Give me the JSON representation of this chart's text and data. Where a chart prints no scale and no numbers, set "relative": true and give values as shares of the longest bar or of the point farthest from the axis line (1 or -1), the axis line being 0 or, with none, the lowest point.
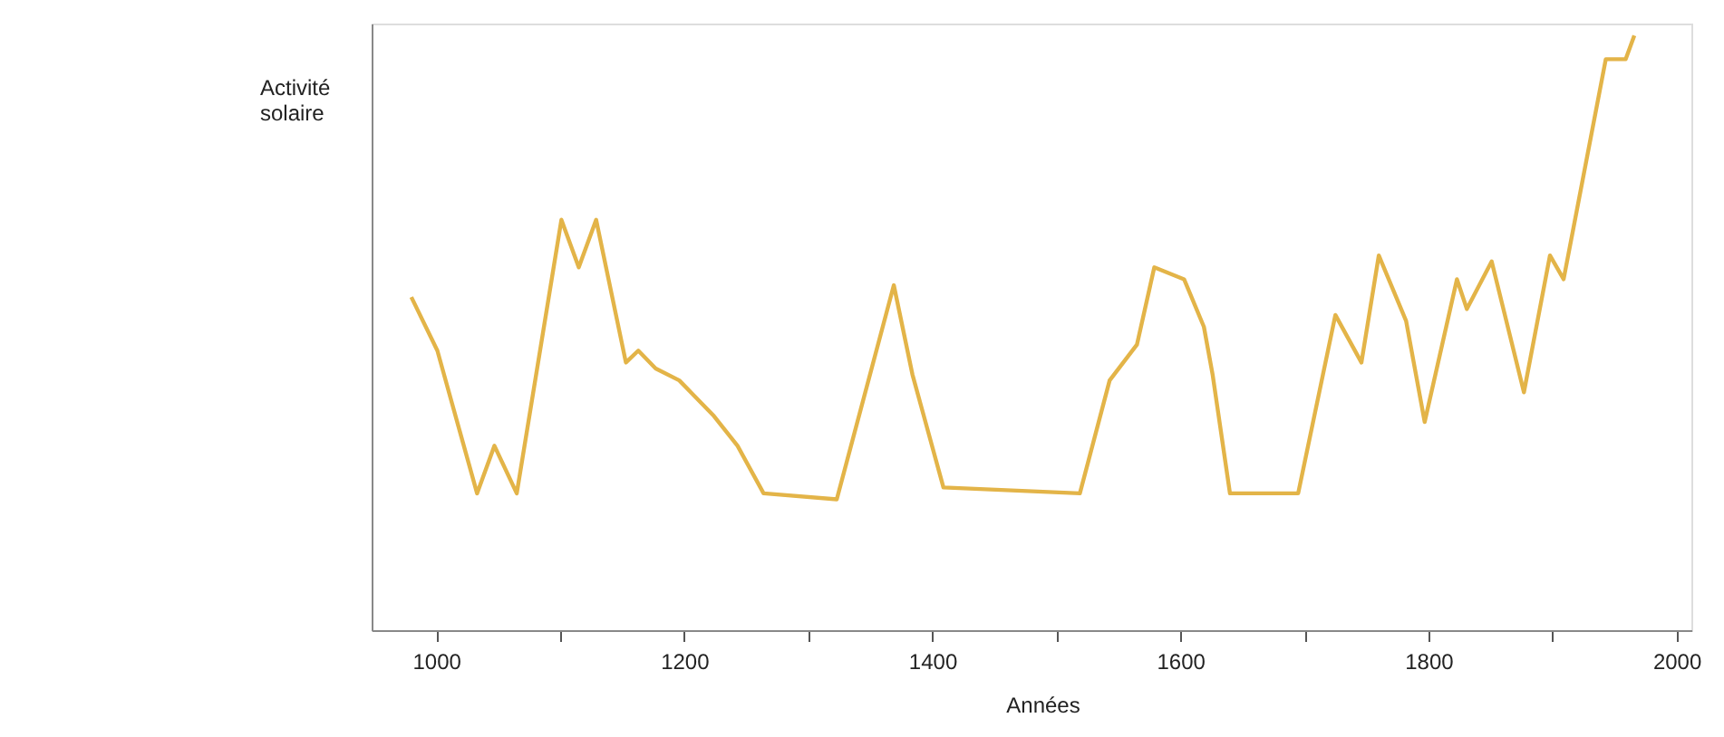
{
  "chart_data": {
    "type": "line",
    "relative": true,
    "ylabel": "Activité solaire",
    "xlabel": "Années",
    "xlim": [
      948,
      2012
    ],
    "xticks": [
      1000,
      {
        "value": 1100,
        "label": null
      },
      1200,
      {
        "value": 1300,
        "label": null
      },
      1400,
      {
        "value": 1500,
        "label": null
      },
      1600,
      {
        "value": 1700,
        "label": null
      },
      1800,
      {
        "value": 1900,
        "label": null
      },
      2000
    ],
    "grid": false,
    "marker": "none",
    "line_style": "solid",
    "series": [
      {
        "color": "#e3b448",
        "x": [
          980,
          1001,
          1033,
          1047,
          1065,
          1101,
          1115,
          1129,
          1153,
          1163,
          1177,
          1196,
          1224,
          1243,
          1264,
          1323,
          1369,
          1384,
          1409,
          1519,
          1543,
          1565,
          1579,
          1603,
          1619,
          1626,
          1640,
          1695,
          1725,
          1746,
          1760,
          1782,
          1797,
          1823,
          1831,
          1851,
          1877,
          1898,
          1909,
          1943,
          1959,
          1966
        ],
        "values": [
          0.56,
          0.47,
          0.23,
          0.31,
          0.23,
          0.69,
          0.61,
          0.69,
          0.45,
          0.47,
          0.44,
          0.42,
          0.36,
          0.31,
          0.23,
          0.22,
          0.58,
          0.43,
          0.24,
          0.23,
          0.42,
          0.48,
          0.61,
          0.59,
          0.51,
          0.43,
          0.23,
          0.23,
          0.53,
          0.45,
          0.63,
          0.52,
          0.35,
          0.59,
          0.54,
          0.62,
          0.4,
          0.63,
          0.59,
          0.96,
          0.96,
          1.0
        ]
      }
    ]
  }
}
